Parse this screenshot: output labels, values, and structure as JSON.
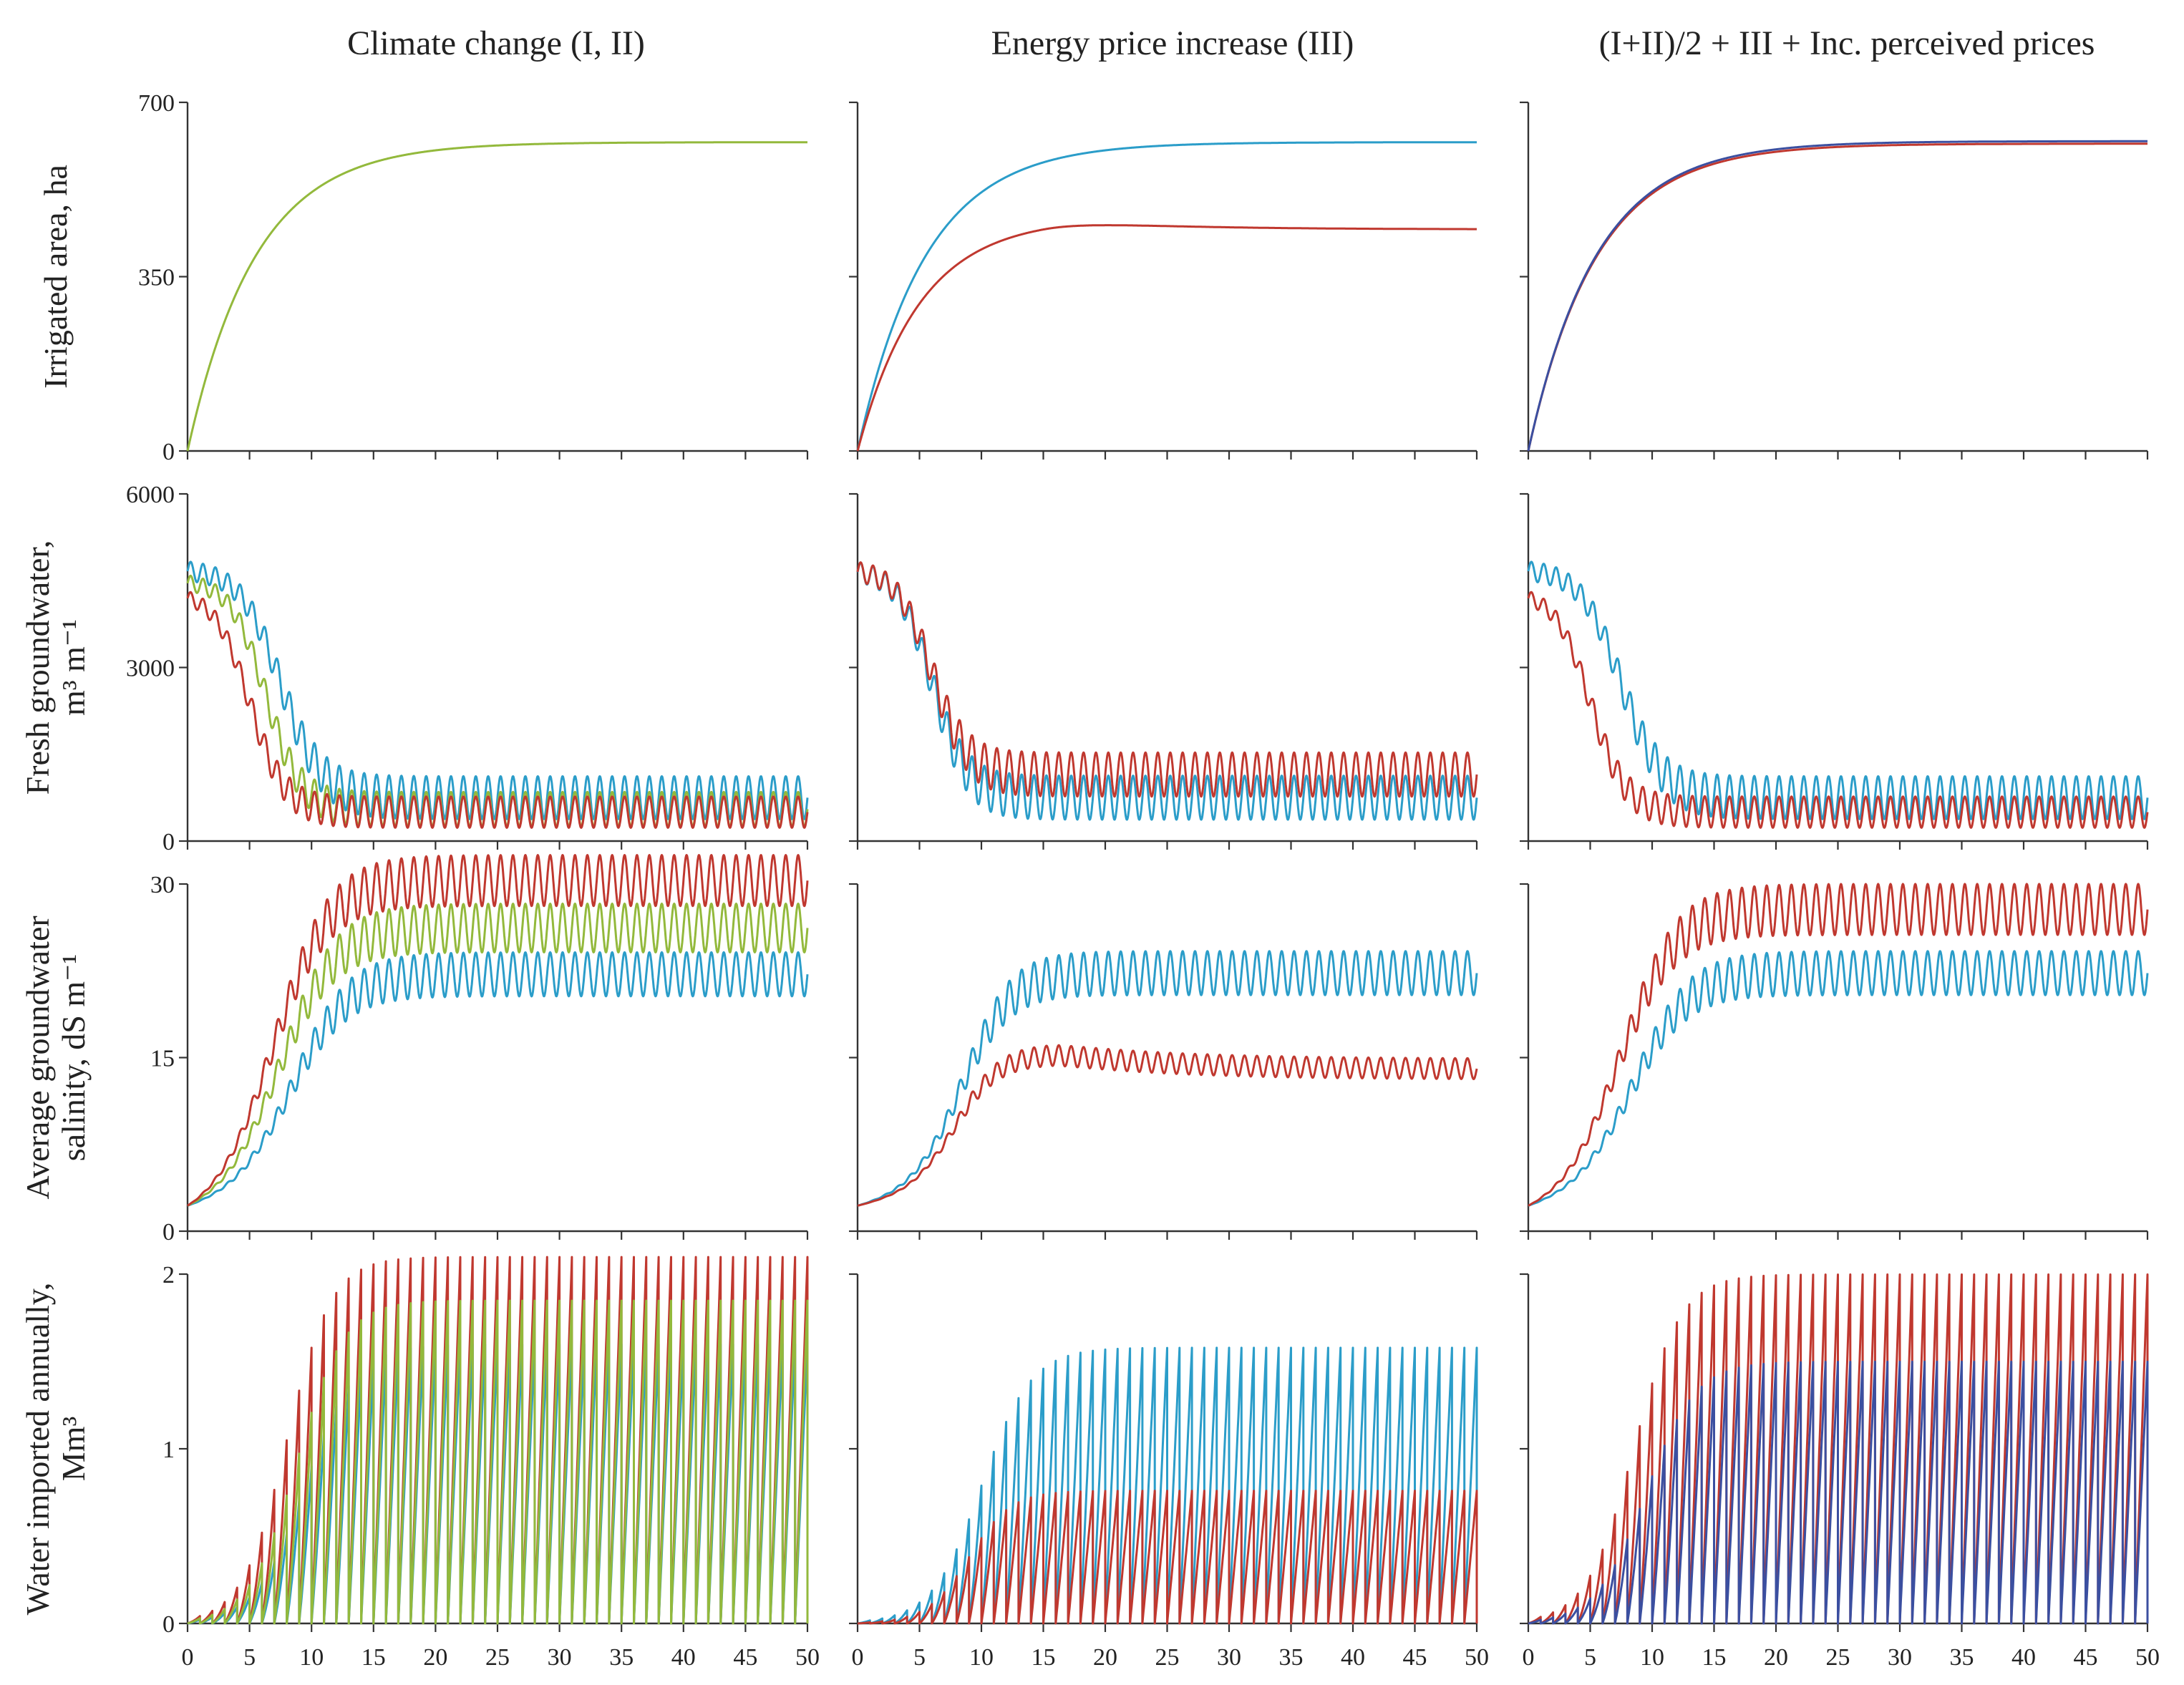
{
  "chart_data": {
    "type": "line",
    "layout": "grid 4 rows x 3 columns, shared x axis",
    "column_titles": [
      "Climate change (I, II)",
      "Energy price increase (III)",
      "(I+II)/2 + III + Inc. perceived prices"
    ],
    "x": {
      "label": "",
      "range": [
        0,
        50
      ],
      "ticks": [
        "0",
        "5",
        "10",
        "15",
        "20",
        "25",
        "30",
        "35",
        "40",
        "45",
        "50"
      ]
    },
    "colors": {
      "blue": "#2b9dc9",
      "red": "#c0382f",
      "green": "#93b93c",
      "navy": "#3b4fa0"
    },
    "rows": [
      {
        "label_lines": [
          "Irrigated area, ha"
        ],
        "ylim": [
          0,
          700
        ],
        "yticks": [
          "0",
          "350",
          "700"
        ],
        "panels": [
          {
            "series": [
              {
                "name": "green",
                "color": "#93b93c",
                "kind": "area",
                "start": 0,
                "end": 620,
                "tau": 5.5
              }
            ]
          },
          {
            "series": [
              {
                "name": "blue",
                "color": "#2b9dc9",
                "kind": "area",
                "start": 0,
                "end": 620,
                "tau": 5.5
              },
              {
                "name": "red",
                "color": "#c0382f",
                "kind": "area_peak",
                "start": 0,
                "end": 445,
                "tau": 5.0,
                "peak": 468,
                "peak_x": 15
              }
            ]
          },
          {
            "series": [
              {
                "name": "red",
                "color": "#c0382f",
                "kind": "area",
                "start": 0,
                "end": 617,
                "tau": 5.5
              },
              {
                "name": "navy",
                "color": "#3b4fa0",
                "kind": "area",
                "start": 0,
                "end": 622,
                "tau": 5.5
              }
            ]
          }
        ]
      },
      {
        "label_lines": [
          "Fresh groundwater,",
          "m³ m⁻¹"
        ],
        "ylim": [
          0,
          6000
        ],
        "yticks": [
          "0",
          "3000",
          "6000"
        ],
        "panels": [
          {
            "series": [
              {
                "name": "blue",
                "color": "#2b9dc9",
                "kind": "decline_osc",
                "start": 4700,
                "end": 750,
                "t0": 7.5,
                "w": 1.6,
                "amp": 370,
                "period": 1
              },
              {
                "name": "green",
                "color": "#93b93c",
                "kind": "decline_osc",
                "start": 4500,
                "end": 550,
                "t0": 6.3,
                "w": 1.4,
                "amp": 300,
                "period": 1
              },
              {
                "name": "red",
                "color": "#c0382f",
                "kind": "decline_osc",
                "start": 4300,
                "end": 500,
                "t0": 5.0,
                "w": 1.4,
                "amp": 270,
                "period": 1
              }
            ]
          },
          {
            "series": [
              {
                "name": "blue",
                "color": "#2b9dc9",
                "kind": "decline_osc",
                "start": 4700,
                "end": 750,
                "t0": 6.0,
                "w": 1.4,
                "amp": 380,
                "period": 1
              },
              {
                "name": "red",
                "color": "#c0382f",
                "kind": "decline_osc",
                "start": 4700,
                "end": 1150,
                "t0": 6.0,
                "w": 1.4,
                "amp": 380,
                "period": 1
              }
            ]
          },
          {
            "series": [
              {
                "name": "blue",
                "color": "#2b9dc9",
                "kind": "decline_osc",
                "start": 4700,
                "end": 750,
                "t0": 7.5,
                "w": 1.6,
                "amp": 370,
                "period": 1
              },
              {
                "name": "red",
                "color": "#c0382f",
                "kind": "decline_osc",
                "start": 4300,
                "end": 500,
                "t0": 5.0,
                "w": 1.4,
                "amp": 270,
                "period": 1
              }
            ]
          }
        ]
      },
      {
        "label_lines": [
          "Average groundwater",
          "salinity, dS m⁻¹"
        ],
        "ylim": [
          0,
          30
        ],
        "yticks": [
          "0",
          "15",
          "30"
        ],
        "panels": [
          {
            "series": [
              {
                "name": "blue",
                "color": "#2b9dc9",
                "kind": "rise_osc",
                "start": 2.2,
                "end": 22.2,
                "t0": 8.5,
                "w": 2.2,
                "amp": 1.9,
                "period": 1
              },
              {
                "name": "green",
                "color": "#93b93c",
                "kind": "rise_osc",
                "start": 2.2,
                "end": 26.2,
                "t0": 7.5,
                "w": 2.2,
                "amp": 2.1,
                "period": 1
              },
              {
                "name": "red",
                "color": "#c0382f",
                "kind": "rise_osc",
                "start": 2.2,
                "end": 30.3,
                "t0": 7.0,
                "w": 2.2,
                "amp": 2.2,
                "period": 1
              }
            ]
          },
          {
            "series": [
              {
                "name": "blue",
                "color": "#2b9dc9",
                "kind": "rise_osc",
                "start": 2.2,
                "end": 22.3,
                "t0": 8.5,
                "w": 1.9,
                "amp": 1.9,
                "period": 1
              },
              {
                "name": "red",
                "color": "#c0382f",
                "kind": "rise_peak_osc",
                "start": 2.2,
                "end": 14.0,
                "t0": 8.0,
                "w": 1.7,
                "peak": 15.3,
                "peak_x": 16,
                "amp": 0.9,
                "period": 1
              }
            ]
          },
          {
            "series": [
              {
                "name": "blue",
                "color": "#2b9dc9",
                "kind": "rise_osc",
                "start": 2.2,
                "end": 22.3,
                "t0": 8.5,
                "w": 2.2,
                "amp": 1.9,
                "period": 1
              },
              {
                "name": "red",
                "color": "#c0382f",
                "kind": "rise_osc",
                "start": 2.2,
                "end": 27.8,
                "t0": 7.5,
                "w": 2.2,
                "amp": 2.2,
                "period": 1
              }
            ]
          }
        ]
      },
      {
        "label_lines": [
          "Water imported annually,",
          "Mm³"
        ],
        "ylim": [
          0,
          2
        ],
        "yticks": [
          "0",
          "1",
          "2"
        ],
        "panels": [
          {
            "series": [
              {
                "name": "red",
                "color": "#c0382f",
                "kind": "sawtooth",
                "peak": 2.1,
                "t0": 8.0,
                "w": 1.8,
                "period": 1
              },
              {
                "name": "blue",
                "color": "#2b9dc9",
                "kind": "sawtooth",
                "peak": 1.6,
                "t0": 9.5,
                "w": 2.0,
                "period": 1
              },
              {
                "name": "green",
                "color": "#93b93c",
                "kind": "sawtooth",
                "peak": 1.85,
                "t0": 8.8,
                "w": 1.9,
                "period": 1
              }
            ]
          },
          {
            "series": [
              {
                "name": "blue",
                "color": "#2b9dc9",
                "kind": "sawtooth",
                "peak": 1.58,
                "t0": 10.0,
                "w": 2.0,
                "period": 1
              },
              {
                "name": "red",
                "color": "#c0382f",
                "kind": "sawtooth",
                "peak": 0.76,
                "t0": 9.0,
                "w": 1.7,
                "period": 1
              }
            ]
          },
          {
            "series": [
              {
                "name": "red",
                "color": "#c0382f",
                "kind": "sawtooth",
                "peak": 2.0,
                "t0": 8.5,
                "w": 1.9,
                "period": 1
              },
              {
                "name": "navy",
                "color": "#3b4fa0",
                "kind": "sawtooth",
                "peak": 1.5,
                "t0": 9.5,
                "w": 2.0,
                "period": 1
              }
            ]
          }
        ]
      }
    ]
  }
}
